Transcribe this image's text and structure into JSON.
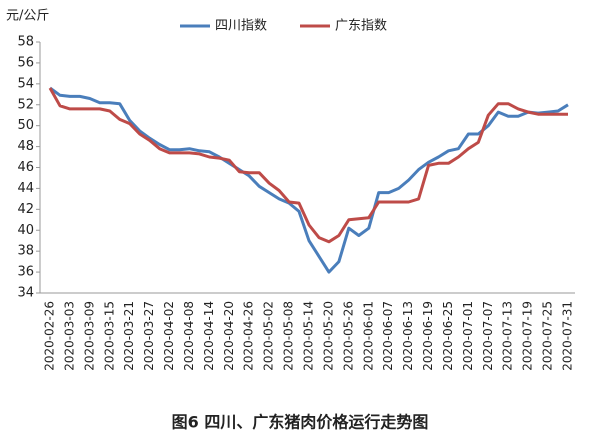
{
  "chart_data": {
    "type": "line",
    "title": "图6 四川、广东猪肉价格运行走势图",
    "y_label": "元/公斤",
    "categories": [
      "2020-02-26",
      null,
      "2020-03-03",
      null,
      "2020-03-09",
      null,
      "2020-03-15",
      null,
      "2020-03-21",
      null,
      "2020-03-27",
      null,
      "2020-04-02",
      null,
      "2020-04-08",
      null,
      "2020-04-14",
      null,
      "2020-04-20",
      null,
      "2020-04-26",
      null,
      "2020-05-02",
      null,
      "2020-05-08",
      null,
      "2020-05-14",
      null,
      "2020-05-20",
      null,
      "2020-05-26",
      null,
      "2020-06-01",
      null,
      "2020-06-07",
      null,
      "2020-06-13",
      null,
      "2020-06-19",
      null,
      "2020-06-25",
      null,
      "2020-07-01",
      null,
      "2020-07-07",
      null,
      "2020-07-13",
      null,
      "2020-07-19",
      null,
      "2020-07-25",
      null,
      "2020-07-31"
    ],
    "series": [
      {
        "name": "四川指数",
        "color": "#4a7ebb",
        "values": [
          53.6,
          52.9,
          52.8,
          52.8,
          52.6,
          52.2,
          52.2,
          52.1,
          50.5,
          49.5,
          48.8,
          48.2,
          47.7,
          47.7,
          47.8,
          47.6,
          47.5,
          47.0,
          46.4,
          45.8,
          45.2,
          44.2,
          43.6,
          43.0,
          42.6,
          41.8,
          39.0,
          37.5,
          36.0,
          37.0,
          40.2,
          39.5,
          40.2,
          43.6,
          43.6,
          44.0,
          44.8,
          45.8,
          46.5,
          47.0,
          47.6,
          47.8,
          49.2,
          49.2,
          50.0,
          51.3,
          50.9,
          50.9,
          51.3,
          51.2,
          51.3,
          51.4,
          52.0
        ]
      },
      {
        "name": "广东指数",
        "color": "#be4b48",
        "values": [
          53.6,
          51.9,
          51.6,
          51.6,
          51.6,
          51.6,
          51.4,
          50.6,
          50.2,
          49.2,
          48.6,
          47.8,
          47.4,
          47.4,
          47.4,
          47.3,
          47.0,
          46.9,
          46.7,
          45.6,
          45.5,
          45.5,
          44.5,
          43.8,
          42.7,
          42.6,
          40.5,
          39.3,
          38.9,
          39.5,
          41.0,
          41.1,
          41.2,
          42.7,
          42.7,
          42.7,
          42.7,
          43.0,
          46.2,
          46.4,
          46.4,
          47.0,
          47.8,
          48.4,
          51.0,
          52.1,
          52.1,
          51.6,
          51.3,
          51.1,
          51.1,
          51.1,
          51.1
        ]
      }
    ],
    "ylim": [
      34,
      58
    ],
    "yticks": [
      34,
      36,
      38,
      40,
      42,
      44,
      46,
      48,
      50,
      52,
      54,
      56,
      58
    ],
    "grid": false,
    "legend": "top"
  }
}
